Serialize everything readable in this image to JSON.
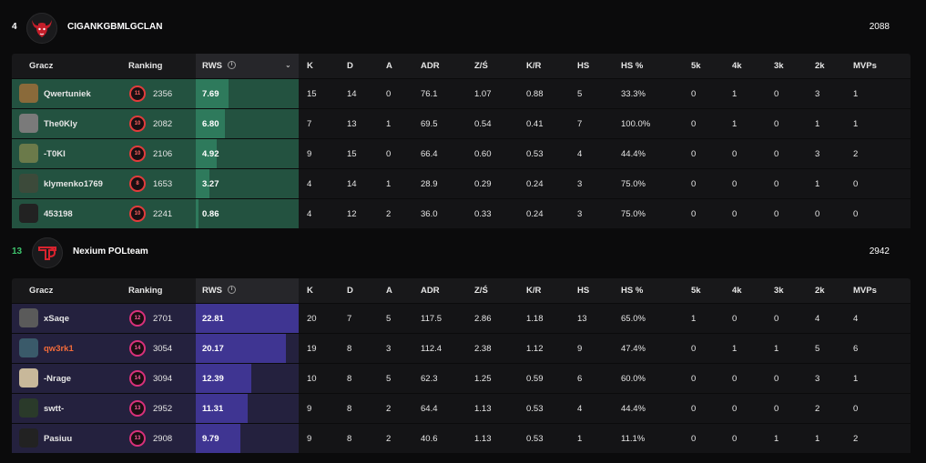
{
  "columns": {
    "player": "Gracz",
    "ranking": "Ranking",
    "rws": "RWS",
    "stats": [
      "K",
      "D",
      "A",
      "ADR",
      "Z/Ś",
      "K/R",
      "HS",
      "HS %",
      "5k",
      "4k",
      "3k",
      "2k",
      "MVPs"
    ]
  },
  "teams": [
    {
      "score": "4",
      "name": "CIGANKGBMLGCLAN",
      "elo": "2088",
      "colors": {
        "row": "#235240",
        "bar": "#2e7a5c"
      },
      "players": [
        {
          "name": "Qwertuniek",
          "level": "11",
          "ranking": "2356",
          "rws": "7.69",
          "rws_fraction": 0.32,
          "stats": [
            "15",
            "14",
            "0",
            "76.1",
            "1.07",
            "0.88",
            "5",
            "33.3%",
            "0",
            "1",
            "0",
            "3",
            "1"
          ]
        },
        {
          "name": "The0Kly",
          "level": "10",
          "ranking": "2082",
          "rws": "6.80",
          "rws_fraction": 0.28,
          "stats": [
            "7",
            "13",
            "1",
            "69.5",
            "0.54",
            "0.41",
            "7",
            "100.0%",
            "0",
            "1",
            "0",
            "1",
            "1"
          ]
        },
        {
          "name": "-T0KI",
          "level": "10",
          "ranking": "2106",
          "rws": "4.92",
          "rws_fraction": 0.2,
          "stats": [
            "9",
            "15",
            "0",
            "66.4",
            "0.60",
            "0.53",
            "4",
            "44.4%",
            "0",
            "0",
            "0",
            "3",
            "2"
          ]
        },
        {
          "name": "klymenko1769",
          "level": "8",
          "ranking": "1653",
          "rws": "3.27",
          "rws_fraction": 0.13,
          "stats": [
            "4",
            "14",
            "1",
            "28.9",
            "0.29",
            "0.24",
            "3",
            "75.0%",
            "0",
            "0",
            "0",
            "1",
            "0"
          ]
        },
        {
          "name": "453198",
          "level": "10",
          "ranking": "2241",
          "rws": "0.86",
          "rws_fraction": 0.03,
          "stats": [
            "4",
            "12",
            "2",
            "36.0",
            "0.33",
            "0.24",
            "3",
            "75.0%",
            "0",
            "0",
            "0",
            "0",
            "0"
          ]
        }
      ]
    },
    {
      "score": "13",
      "name": "Nexium POLteam",
      "elo": "2942",
      "colors": {
        "row": "#24213e",
        "bar": "#3f3592"
      },
      "players": [
        {
          "name": "xSaqe",
          "level": "12",
          "ranking": "2701",
          "rws": "22.81",
          "rws_fraction": 1.0,
          "stats": [
            "20",
            "7",
            "5",
            "117.5",
            "2.86",
            "1.18",
            "13",
            "65.0%",
            "1",
            "0",
            "0",
            "4",
            "4"
          ]
        },
        {
          "name": "qw3rk1",
          "level": "14",
          "ranking": "3054",
          "rws": "20.17",
          "rws_fraction": 0.88,
          "stats": [
            "19",
            "8",
            "3",
            "112.4",
            "2.38",
            "1.12",
            "9",
            "47.4%",
            "0",
            "1",
            "1",
            "5",
            "6"
          ]
        },
        {
          "name": "-Nrage",
          "level": "14",
          "ranking": "3094",
          "rws": "12.39",
          "rws_fraction": 0.54,
          "stats": [
            "10",
            "8",
            "5",
            "62.3",
            "1.25",
            "0.59",
            "6",
            "60.0%",
            "0",
            "0",
            "0",
            "3",
            "1"
          ]
        },
        {
          "name": "swtt-",
          "level": "13",
          "ranking": "2952",
          "rws": "11.31",
          "rws_fraction": 0.5,
          "stats": [
            "9",
            "8",
            "2",
            "64.4",
            "1.13",
            "0.53",
            "4",
            "44.4%",
            "0",
            "0",
            "0",
            "2",
            "0"
          ]
        },
        {
          "name": "Pasiuu",
          "level": "13",
          "ranking": "2908",
          "rws": "9.79",
          "rws_fraction": 0.43,
          "stats": [
            "9",
            "8",
            "2",
            "40.6",
            "1.13",
            "0.53",
            "1",
            "11.1%",
            "0",
            "0",
            "1",
            "1",
            "2"
          ]
        }
      ]
    }
  ]
}
